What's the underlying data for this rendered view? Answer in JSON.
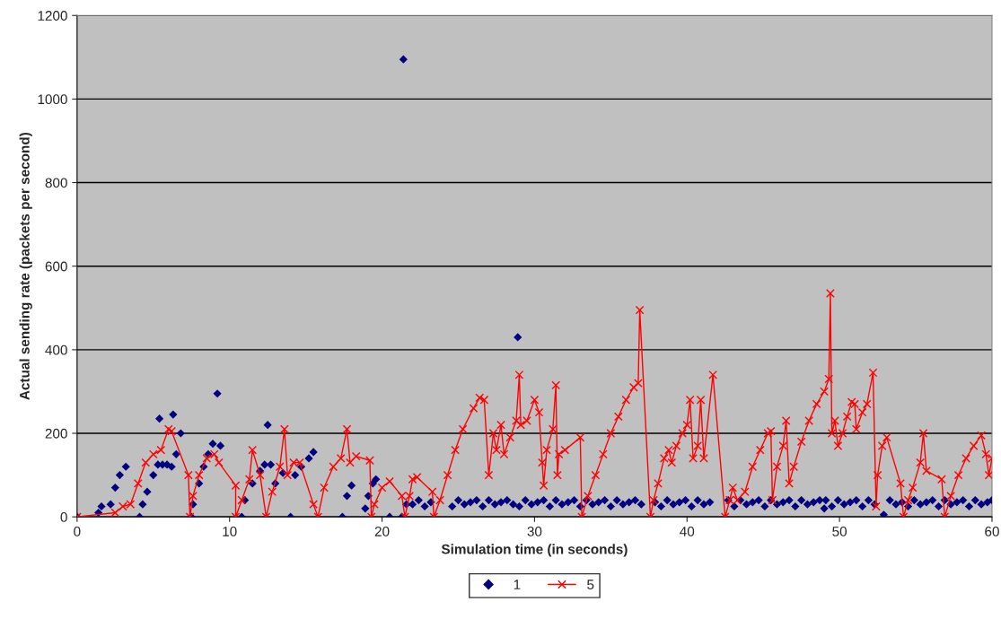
{
  "chart_data": {
    "type": "scatter",
    "xlabel": "Simulation time (in seconds)",
    "ylabel": "Actual sending rate (packets per second)",
    "xlim": [
      0,
      60
    ],
    "ylim": [
      0,
      1200
    ],
    "xticks": [
      0,
      10,
      20,
      30,
      40,
      50,
      60
    ],
    "yticks": [
      0,
      200,
      400,
      600,
      800,
      1000,
      1200
    ],
    "grid": "y",
    "legend": "bottom",
    "series": [
      {
        "name": "1",
        "marker": "diamond",
        "color": "#000080",
        "x": [
          0,
          1.4,
          1.6,
          2.2,
          2.5,
          2.8,
          3.2,
          4.1,
          4.3,
          4.6,
          5,
          5.3,
          5.4,
          5.6,
          5.9,
          6.2,
          6.3,
          6.5,
          6.8,
          7.5,
          7.6,
          8,
          8.3,
          8.6,
          8.9,
          9.2,
          9.4,
          10.8,
          11,
          11.5,
          12,
          12.3,
          12.5,
          12.7,
          13,
          13.5,
          14,
          14.3,
          14.7,
          15.2,
          15.5,
          17.4,
          17.7,
          18,
          18.9,
          19.1,
          19.4,
          19.6,
          20.5,
          21.3,
          21.4,
          21.6,
          22,
          22.4,
          22.8,
          23.2,
          24.6,
          25,
          25.4,
          25.8,
          26.2,
          26.6,
          27,
          27.4,
          27.8,
          28.2,
          28.6,
          28.9,
          29,
          29.4,
          29.8,
          30.2,
          30.6,
          31,
          31.4,
          31.8,
          32.2,
          32.6,
          33,
          33.4,
          33.8,
          34.2,
          34.6,
          35,
          35.4,
          35.8,
          36.2,
          36.6,
          37,
          37.9,
          38.3,
          38.7,
          39.1,
          39.5,
          39.9,
          40.3,
          40.7,
          41.1,
          41.5,
          42.7,
          43.1,
          43.5,
          43.9,
          44.3,
          44.7,
          45.1,
          45.5,
          45.9,
          46.3,
          46.7,
          47.1,
          47.5,
          47.9,
          48.3,
          48.7,
          49,
          49.1,
          49.5,
          49.9,
          50.3,
          50.7,
          51.1,
          51.5,
          51.9,
          52.3,
          52.9,
          53.3,
          53.7,
          54.1,
          54.5,
          54.9,
          55.3,
          55.7,
          56.1,
          56.5,
          56.9,
          57.3,
          57.7,
          58.1,
          58.5,
          58.9,
          59.3,
          59.7,
          60
        ],
        "values": [
          0,
          10,
          25,
          30,
          70,
          100,
          120,
          0,
          30,
          60,
          100,
          125,
          235,
          125,
          125,
          120,
          245,
          150,
          200,
          0,
          30,
          80,
          120,
          150,
          175,
          295,
          170,
          0,
          40,
          80,
          110,
          125,
          220,
          125,
          80,
          105,
          0,
          100,
          120,
          140,
          155,
          0,
          50,
          75,
          20,
          50,
          80,
          90,
          0,
          0,
          1095,
          30,
          30,
          40,
          25,
          35,
          25,
          40,
          30,
          35,
          40,
          25,
          40,
          30,
          35,
          40,
          30,
          430,
          25,
          40,
          30,
          35,
          40,
          25,
          40,
          30,
          35,
          40,
          25,
          40,
          30,
          35,
          40,
          25,
          40,
          30,
          35,
          40,
          30,
          35,
          25,
          40,
          30,
          35,
          40,
          25,
          40,
          30,
          35,
          40,
          25,
          40,
          30,
          35,
          40,
          25,
          40,
          30,
          35,
          40,
          25,
          40,
          30,
          35,
          40,
          20,
          40,
          25,
          40,
          30,
          35,
          40,
          25,
          40,
          30,
          5,
          40,
          30,
          35,
          25,
          40,
          30,
          35,
          40,
          25,
          40,
          30,
          35,
          40,
          25,
          40,
          30,
          35,
          40
        ]
      },
      {
        "name": "5",
        "type": "line",
        "marker": "cross",
        "color": "#ff0000",
        "x": [
          0,
          2.5,
          3,
          3.5,
          4,
          4.5,
          5,
          5.5,
          6,
          6.2,
          7.3,
          7.4,
          7.6,
          8,
          8.5,
          9,
          9.3,
          10.4,
          10.4,
          10.8,
          11.3,
          11.5,
          12,
          12.4,
          12.8,
          13.3,
          13.6,
          13.8,
          14.2,
          14.6,
          15.5,
          15.8,
          16.2,
          16.8,
          17.3,
          17.7,
          17.9,
          18.3,
          19.2,
          19.3,
          19.5,
          20,
          20.5,
          21.3,
          21.5,
          21.8,
          22,
          22.3,
          23.3,
          23.4,
          23.8,
          24.3,
          24.8,
          25.3,
          26,
          26.4,
          26.7,
          27,
          27.3,
          27.5,
          27.8,
          28,
          28.4,
          28.8,
          29,
          29.1,
          29.5,
          30,
          30.3,
          30.5,
          30.6,
          30.8,
          31.2,
          31.4,
          31.5,
          31.6,
          32,
          33,
          33.1,
          33.5,
          34,
          34.5,
          35,
          35.5,
          36,
          36.5,
          36.8,
          36.9,
          37.6,
          37.8,
          38.1,
          38.5,
          38.8,
          39,
          39.3,
          39.7,
          40,
          40.2,
          40.4,
          40.7,
          40.9,
          41.1,
          41.7,
          42.5,
          42.8,
          43,
          43.3,
          43.8,
          44.3,
          44.8,
          45.3,
          45.5,
          45.6,
          45.9,
          46.3,
          46.5,
          46.7,
          47,
          47.5,
          48,
          48.5,
          49,
          49.3,
          49.4,
          49.5,
          49.7,
          49.9,
          50.2,
          50.5,
          50.8,
          51,
          51.1,
          51.5,
          51.8,
          52.2,
          52.4,
          52.5,
          52.8,
          53.1,
          54,
          54.2,
          54.5,
          54.8,
          55.3,
          55.5,
          55.7,
          56.7,
          56.9,
          57.3,
          57.8,
          58.3,
          58.8,
          59.3,
          59.6,
          59.8,
          60
        ],
        "values": [
          0,
          10,
          25,
          30,
          80,
          130,
          150,
          160,
          210,
          205,
          100,
          0,
          50,
          100,
          140,
          150,
          130,
          75,
          0,
          40,
          90,
          160,
          100,
          0,
          60,
          120,
          210,
          100,
          130,
          130,
          30,
          0,
          70,
          120,
          140,
          210,
          130,
          145,
          135,
          0,
          30,
          70,
          85,
          50,
          0,
          50,
          90,
          95,
          60,
          0,
          40,
          100,
          160,
          210,
          260,
          285,
          280,
          100,
          200,
          160,
          220,
          150,
          190,
          230,
          340,
          220,
          230,
          280,
          250,
          130,
          75,
          160,
          210,
          315,
          100,
          150,
          160,
          190,
          0,
          50,
          100,
          150,
          200,
          240,
          280,
          310,
          320,
          495,
          0,
          40,
          80,
          140,
          160,
          130,
          170,
          200,
          220,
          280,
          140,
          170,
          280,
          140,
          340,
          0,
          40,
          70,
          40,
          60,
          120,
          160,
          200,
          205,
          40,
          120,
          170,
          230,
          80,
          120,
          180,
          230,
          270,
          300,
          330,
          535,
          200,
          230,
          170,
          200,
          240,
          275,
          270,
          210,
          250,
          270,
          345,
          25,
          100,
          170,
          190,
          80,
          0,
          40,
          70,
          130,
          200,
          110,
          90,
          0,
          50,
          100,
          140,
          170,
          195,
          150,
          100,
          140
        ]
      }
    ]
  }
}
